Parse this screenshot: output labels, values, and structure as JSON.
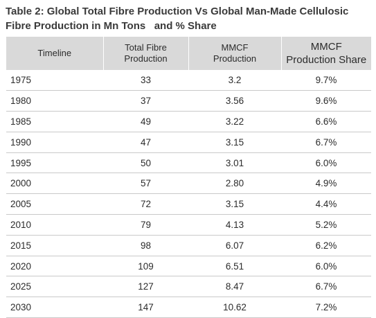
{
  "caption": "Table 2: Global Total Fibre Production Vs Global Man-Made Cellulosic Fibre Production in Mn Tons   and % Share",
  "table": {
    "headers": {
      "timeline": "Timeline",
      "total_fibre": "Total Fibre\nProduction",
      "mmcf": "MMCF\nProduction",
      "share": "MMCF\nProduction Share"
    },
    "rows": [
      {
        "timeline": "1975",
        "total_fibre": "33",
        "mmcf": "3.2",
        "share": "9.7%"
      },
      {
        "timeline": "1980",
        "total_fibre": "37",
        "mmcf": "3.56",
        "share": "9.6%"
      },
      {
        "timeline": "1985",
        "total_fibre": "49",
        "mmcf": "3.22",
        "share": "6.6%"
      },
      {
        "timeline": "1990",
        "total_fibre": "47",
        "mmcf": "3.15",
        "share": "6.7%"
      },
      {
        "timeline": "1995",
        "total_fibre": "50",
        "mmcf": "3.01",
        "share": "6.0%"
      },
      {
        "timeline": "2000",
        "total_fibre": "57",
        "mmcf": "2.80",
        "share": "4.9%"
      },
      {
        "timeline": "2005",
        "total_fibre": "72",
        "mmcf": "3.15",
        "share": "4.4%"
      },
      {
        "timeline": "2010",
        "total_fibre": "79",
        "mmcf": "4.13",
        "share": "5.2%"
      },
      {
        "timeline": "2015",
        "total_fibre": "98",
        "mmcf": "6.07",
        "share": "6.2%"
      },
      {
        "timeline": "2020",
        "total_fibre": "109",
        "mmcf": "6.51",
        "share": "6.0%"
      },
      {
        "timeline": "2025",
        "total_fibre": "127",
        "mmcf": "8.47",
        "share": "6.7%"
      },
      {
        "timeline": "2030",
        "total_fibre": "147",
        "mmcf": "10.62",
        "share": "7.2%"
      }
    ]
  },
  "colors": {
    "header_bg": "#d9d9d9",
    "row_divider": "#c9c9c9",
    "text": "#2b2b2b"
  }
}
